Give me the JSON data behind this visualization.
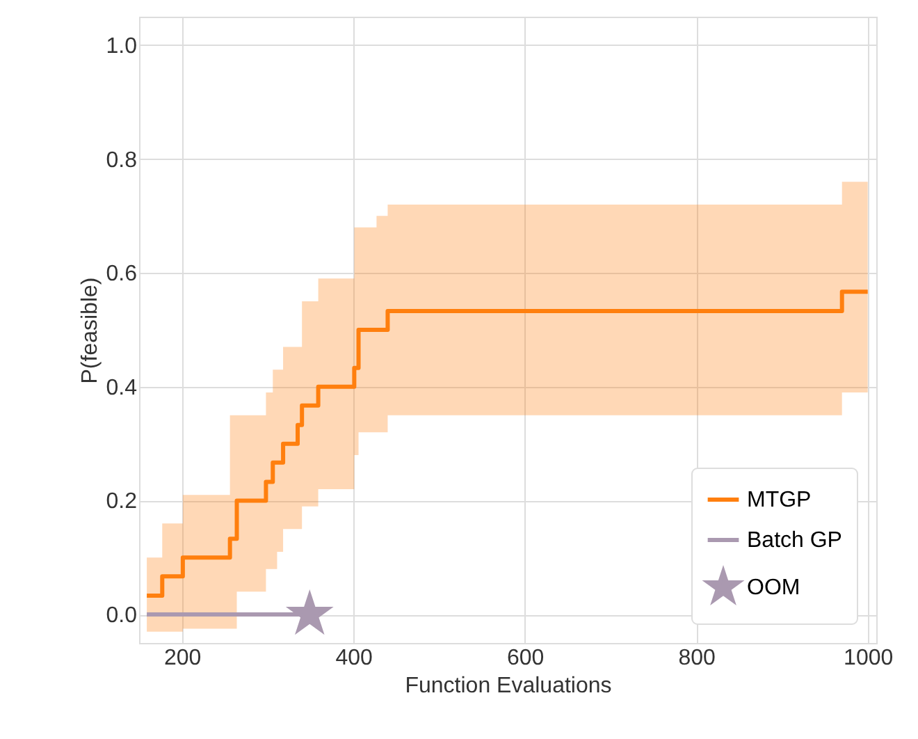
{
  "chart_data": {
    "type": "step",
    "xlabel": "Function Evaluations",
    "ylabel": "P(feasible)",
    "xlim": [
      150,
      1010
    ],
    "ylim": [
      -0.05,
      1.05
    ],
    "xticks": [
      200,
      400,
      600,
      800,
      {
        "value": 1000,
        "label": "1000"
      }
    ],
    "yticks": [
      {
        "value": 0,
        "label": "0.0"
      },
      {
        "value": 0.2,
        "label": "0.2"
      },
      {
        "value": 0.4,
        "label": "0.4"
      },
      {
        "value": 0.6,
        "label": "0.6"
      },
      {
        "value": 0.8,
        "label": "0.8"
      },
      {
        "value": 1.0,
        "label": "1.0"
      }
    ],
    "grid": true,
    "legend": "bottom right",
    "series": [
      {
        "name": "MTGP",
        "color": "#ff7f0e",
        "x": [
          159,
          177,
          201,
          256,
          264,
          298,
          306,
          311,
          318,
          335,
          340,
          359,
          401,
          406,
          427,
          440,
          970,
          1000
        ],
        "values": [
          0.033,
          0.067,
          0.1,
          0.133,
          0.2,
          0.233,
          0.267,
          0.267,
          0.3,
          0.333,
          0.367,
          0.4,
          0.433,
          0.5,
          0.5,
          0.533,
          0.567,
          0.567
        ],
        "lower": [
          -0.03,
          -0.03,
          -0.025,
          -0.025,
          0.04,
          0.08,
          0.08,
          0.11,
          0.15,
          0.15,
          0.19,
          0.22,
          0.28,
          0.32,
          0.32,
          0.35,
          0.39,
          0.39
        ],
        "upper": [
          0.1,
          0.16,
          0.21,
          0.35,
          0.35,
          0.39,
          0.43,
          0.43,
          0.47,
          0.47,
          0.55,
          0.59,
          0.68,
          0.68,
          0.7,
          0.72,
          0.76,
          0.76
        ]
      },
      {
        "name": "Batch GP",
        "color": "#aa99b0",
        "x": [
          159,
          349
        ],
        "values": [
          0,
          0
        ]
      },
      {
        "name": "OOM",
        "type": "scatter",
        "marker": "star",
        "color": "#aa99b0",
        "x": [
          349
        ],
        "values": [
          0
        ]
      }
    ]
  }
}
